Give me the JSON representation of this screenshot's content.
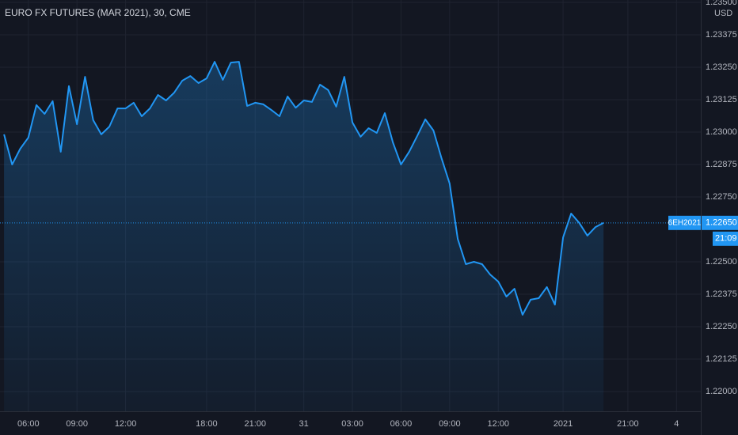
{
  "chart_data": {
    "type": "area",
    "title": "EURO FX FUTURES (MAR 2021), 30, CME",
    "currency": "USD",
    "color": "#2196f3",
    "grid": true,
    "x": [
      0,
      1,
      2,
      3,
      4,
      5,
      6,
      7,
      8,
      9,
      10,
      11,
      12,
      13,
      14,
      15,
      16,
      17,
      18,
      19,
      20,
      21,
      22,
      23,
      24,
      25,
      26,
      27,
      28,
      29,
      30,
      31,
      32,
      33,
      34,
      35,
      36,
      37,
      38,
      39,
      40,
      41,
      42,
      43,
      44,
      45,
      46,
      47,
      48,
      49,
      50,
      51,
      52,
      53,
      54,
      55,
      56,
      57,
      58,
      59,
      60,
      61,
      62,
      63,
      64,
      65,
      66,
      67,
      68,
      69,
      70,
      71,
      72,
      73,
      74
    ],
    "values": [
      1.22991,
      1.22875,
      1.22936,
      1.22979,
      1.23104,
      1.2307,
      1.23119,
      1.22924,
      1.23177,
      1.2303,
      1.23213,
      1.23046,
      1.22991,
      1.23021,
      1.23091,
      1.23091,
      1.23113,
      1.23061,
      1.23091,
      1.23143,
      1.23122,
      1.23152,
      1.23198,
      1.23216,
      1.23189,
      1.23207,
      1.23271,
      1.23201,
      1.23268,
      1.23271,
      1.23101,
      1.23113,
      1.23107,
      1.23085,
      1.23061,
      1.23137,
      1.23094,
      1.23122,
      1.23116,
      1.23183,
      1.23162,
      1.23098,
      1.23213,
      1.23037,
      1.22982,
      1.23015,
      1.22997,
      1.23073,
      1.2296,
      1.22875,
      1.22924,
      1.22985,
      1.23049,
      1.23006,
      1.22899,
      1.22802,
      1.22588,
      1.22491,
      1.225,
      1.22491,
      1.22451,
      1.22424,
      1.22366,
      1.22396,
      1.22296,
      1.22354,
      1.2236,
      1.22403,
      1.22335,
      1.22594,
      1.22686,
      1.2265,
      1.22601,
      1.22634,
      1.2265
    ],
    "xlim": [
      -0.5,
      86
    ],
    "ylim": [
      1.21924,
      1.23509
    ],
    "xticks": [
      {
        "value": 3,
        "label": "06:00"
      },
      {
        "value": 9,
        "label": "09:00"
      },
      {
        "value": 15,
        "label": "12:00"
      },
      {
        "value": 25,
        "label": "18:00"
      },
      {
        "value": 31,
        "label": "21:00"
      },
      {
        "value": 37,
        "label": "31"
      },
      {
        "value": 43,
        "label": "03:00"
      },
      {
        "value": 49,
        "label": "06:00"
      },
      {
        "value": 55,
        "label": "09:00"
      },
      {
        "value": 61,
        "label": "12:00"
      },
      {
        "value": 69,
        "label": "2021"
      },
      {
        "value": 77,
        "label": "21:00"
      },
      {
        "value": 83,
        "label": "4"
      }
    ],
    "yticks": [
      {
        "value": 1.235,
        "label": "1.23500"
      },
      {
        "value": 1.23375,
        "label": "1.23375"
      },
      {
        "value": 1.2325,
        "label": "1.23250"
      },
      {
        "value": 1.23125,
        "label": "1.23125"
      },
      {
        "value": 1.23,
        "label": "1.23000"
      },
      {
        "value": 1.22875,
        "label": "1.22875"
      },
      {
        "value": 1.2275,
        "label": "1.22750"
      },
      {
        "value": 1.225,
        "label": "1.22500"
      },
      {
        "value": 1.22375,
        "label": "1.22375"
      },
      {
        "value": 1.2225,
        "label": "1.22250"
      },
      {
        "value": 1.22125,
        "label": "1.22125"
      },
      {
        "value": 1.22,
        "label": "1.22000"
      }
    ],
    "last_price": {
      "symbol": "6EH2021",
      "value": 1.2265,
      "label": "1.22650",
      "time": "21:09"
    }
  }
}
